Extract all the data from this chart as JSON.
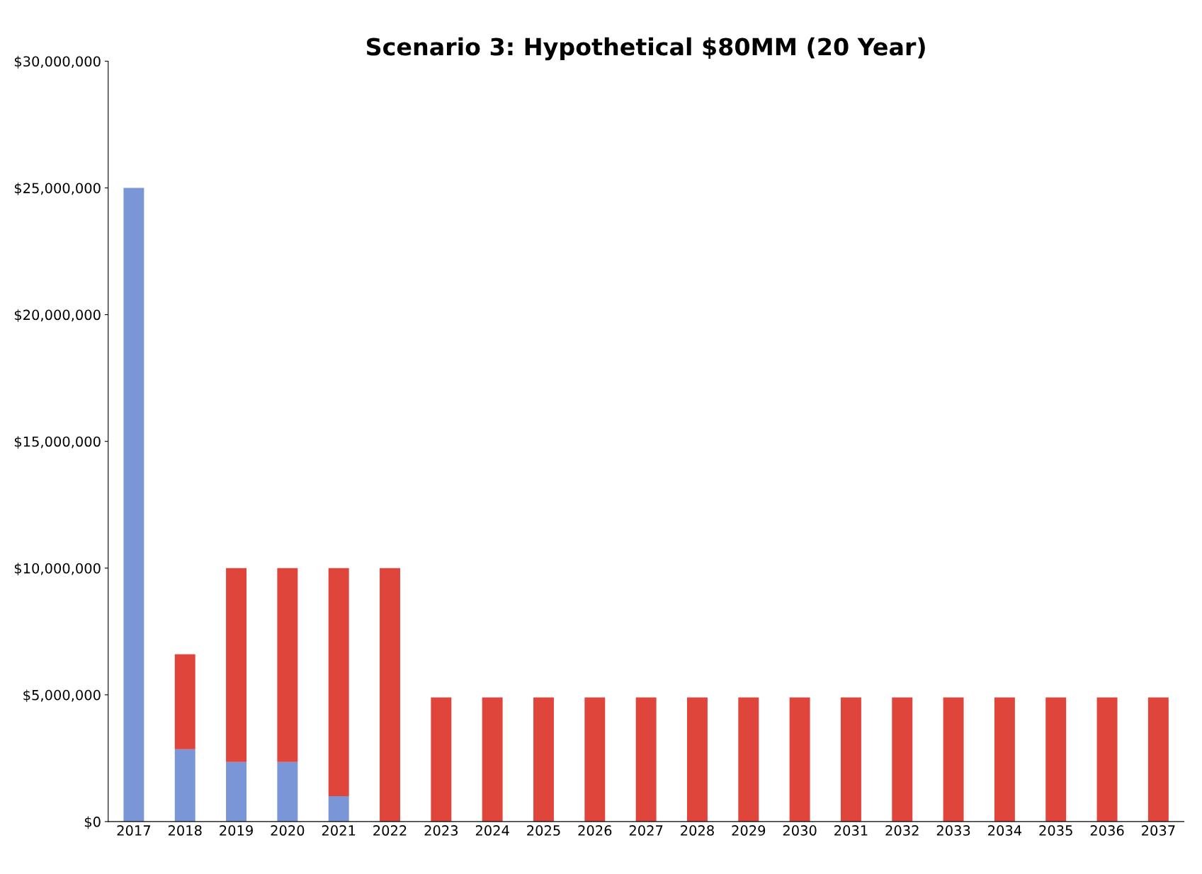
{
  "chart_data": {
    "type": "bar",
    "title": "Scenario 3: Hypothetical $80MM (20 Year)",
    "stacked": true,
    "grid": false,
    "categories": [
      "2017",
      "2018",
      "2019",
      "2020",
      "2021",
      "2022",
      "2023",
      "2024",
      "2025",
      "2026",
      "2027",
      "2028",
      "2029",
      "2030",
      "2031",
      "2032",
      "2033",
      "2034",
      "2035",
      "2036",
      "2037"
    ],
    "series": [
      {
        "color": "#7b96d6",
        "values": [
          25000000,
          2850000,
          2350000,
          2350000,
          1000000,
          0,
          0,
          0,
          0,
          0,
          0,
          0,
          0,
          0,
          0,
          0,
          0,
          0,
          0,
          0,
          0
        ]
      },
      {
        "color": "#e0453c",
        "values": [
          0,
          3750000,
          7650000,
          7650000,
          9000000,
          10000000,
          4900000,
          4900000,
          4900000,
          4900000,
          4900000,
          4900000,
          4900000,
          4900000,
          4900000,
          4900000,
          4900000,
          4900000,
          4900000,
          4900000,
          4900000
        ]
      }
    ],
    "ylim": [
      0,
      30000000
    ],
    "yticks": [
      {
        "value": 0,
        "label": "$0"
      },
      {
        "value": 5000000,
        "label": "$5,000,000"
      },
      {
        "value": 10000000,
        "label": "$10,000,000"
      },
      {
        "value": 15000000,
        "label": "$15,000,000"
      },
      {
        "value": 20000000,
        "label": "$20,000,000"
      },
      {
        "value": 25000000,
        "label": "$25,000,000"
      },
      {
        "value": 30000000,
        "label": "$30,000,000"
      }
    ]
  }
}
